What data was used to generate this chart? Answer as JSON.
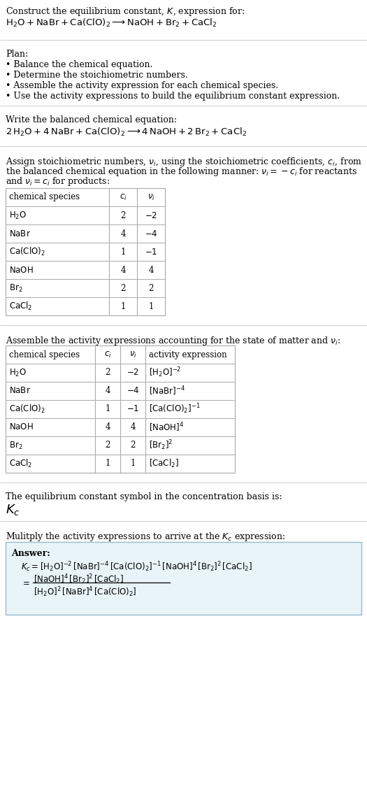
{
  "bg_color": "#ffffff",
  "text_color": "#000000",
  "table_border_color": "#aaaaaa",
  "separator_color": "#cccccc",
  "answer_box_color": "#e8f4f8",
  "answer_box_border": "#99bbcc",
  "title_line1": "Construct the equilibrium constant, $K$, expression for:",
  "title_line2": "$\\mathrm{H_2O + NaBr + Ca(ClO)_2 \\longrightarrow NaOH + Br_2 + CaCl_2}$",
  "plan_header": "Plan:",
  "plan_bullets": [
    "Balance the chemical equation.",
    "Determine the stoichiometric numbers.",
    "Assemble the activity expression for each chemical species.",
    "Use the activity expressions to build the equilibrium constant expression."
  ],
  "balanced_eq_header": "Write the balanced chemical equation:",
  "balanced_eq": "$\\mathrm{2\\,H_2O + 4\\,NaBr + Ca(ClO)_2 \\longrightarrow 4\\,NaOH + 2\\,Br_2 + CaCl_2}$",
  "stoich_para": [
    "Assign stoichiometric numbers, $\\nu_i$, using the stoichiometric coefficients, $c_i$, from",
    "the balanced chemical equation in the following manner: $\\nu_i = -c_i$ for reactants",
    "and $\\nu_i = c_i$ for products:"
  ],
  "table1_cols": [
    "chemical species",
    "$c_i$",
    "$\\nu_i$"
  ],
  "table1_rows": [
    [
      "$\\mathrm{H_2O}$",
      "2",
      "$-2$"
    ],
    [
      "$\\mathrm{NaBr}$",
      "4",
      "$-4$"
    ],
    [
      "$\\mathrm{Ca(ClO)_2}$",
      "1",
      "$-1$"
    ],
    [
      "$\\mathrm{NaOH}$",
      "4",
      "4"
    ],
    [
      "$\\mathrm{Br_2}$",
      "2",
      "2"
    ],
    [
      "$\\mathrm{CaCl_2}$",
      "1",
      "1"
    ]
  ],
  "activity_header": "Assemble the activity expressions accounting for the state of matter and $\\nu_i$:",
  "table2_cols": [
    "chemical species",
    "$c_i$",
    "$\\nu_i$",
    "activity expression"
  ],
  "table2_rows": [
    [
      "$\\mathrm{H_2O}$",
      "2",
      "$-2$",
      "$[\\mathrm{H_2O}]^{-2}$"
    ],
    [
      "$\\mathrm{NaBr}$",
      "4",
      "$-4$",
      "$[\\mathrm{NaBr}]^{-4}$"
    ],
    [
      "$\\mathrm{Ca(ClO)_2}$",
      "1",
      "$-1$",
      "$[\\mathrm{Ca(ClO)_2}]^{-1}$"
    ],
    [
      "$\\mathrm{NaOH}$",
      "4",
      "4",
      "$[\\mathrm{NaOH}]^4$"
    ],
    [
      "$\\mathrm{Br_2}$",
      "2",
      "2",
      "$[\\mathrm{Br_2}]^2$"
    ],
    [
      "$\\mathrm{CaCl_2}$",
      "1",
      "1",
      "$[\\mathrm{CaCl_2}]$"
    ]
  ],
  "kc_header": "The equilibrium constant symbol in the concentration basis is:",
  "kc_symbol": "$K_c$",
  "multiply_header": "Mulitply the activity expressions to arrive at the $K_c$ expression:",
  "answer_label": "Answer:",
  "answer_line1": "$K_c = [\\mathrm{H_2O}]^{-2}\\,[\\mathrm{NaBr}]^{-4}\\,[\\mathrm{Ca(ClO)_2}]^{-1}\\,[\\mathrm{NaOH}]^4\\,[\\mathrm{Br_2}]^2\\,[\\mathrm{CaCl_2}]$",
  "answer_numer": "$[\\mathrm{NaOH}]^4\\,[\\mathrm{Br_2}]^2\\,[\\mathrm{CaCl_2}]$",
  "answer_denom": "$[\\mathrm{H_2O}]^2\\,[\\mathrm{NaBr}]^4\\,[\\mathrm{Ca(ClO)_2}]$"
}
